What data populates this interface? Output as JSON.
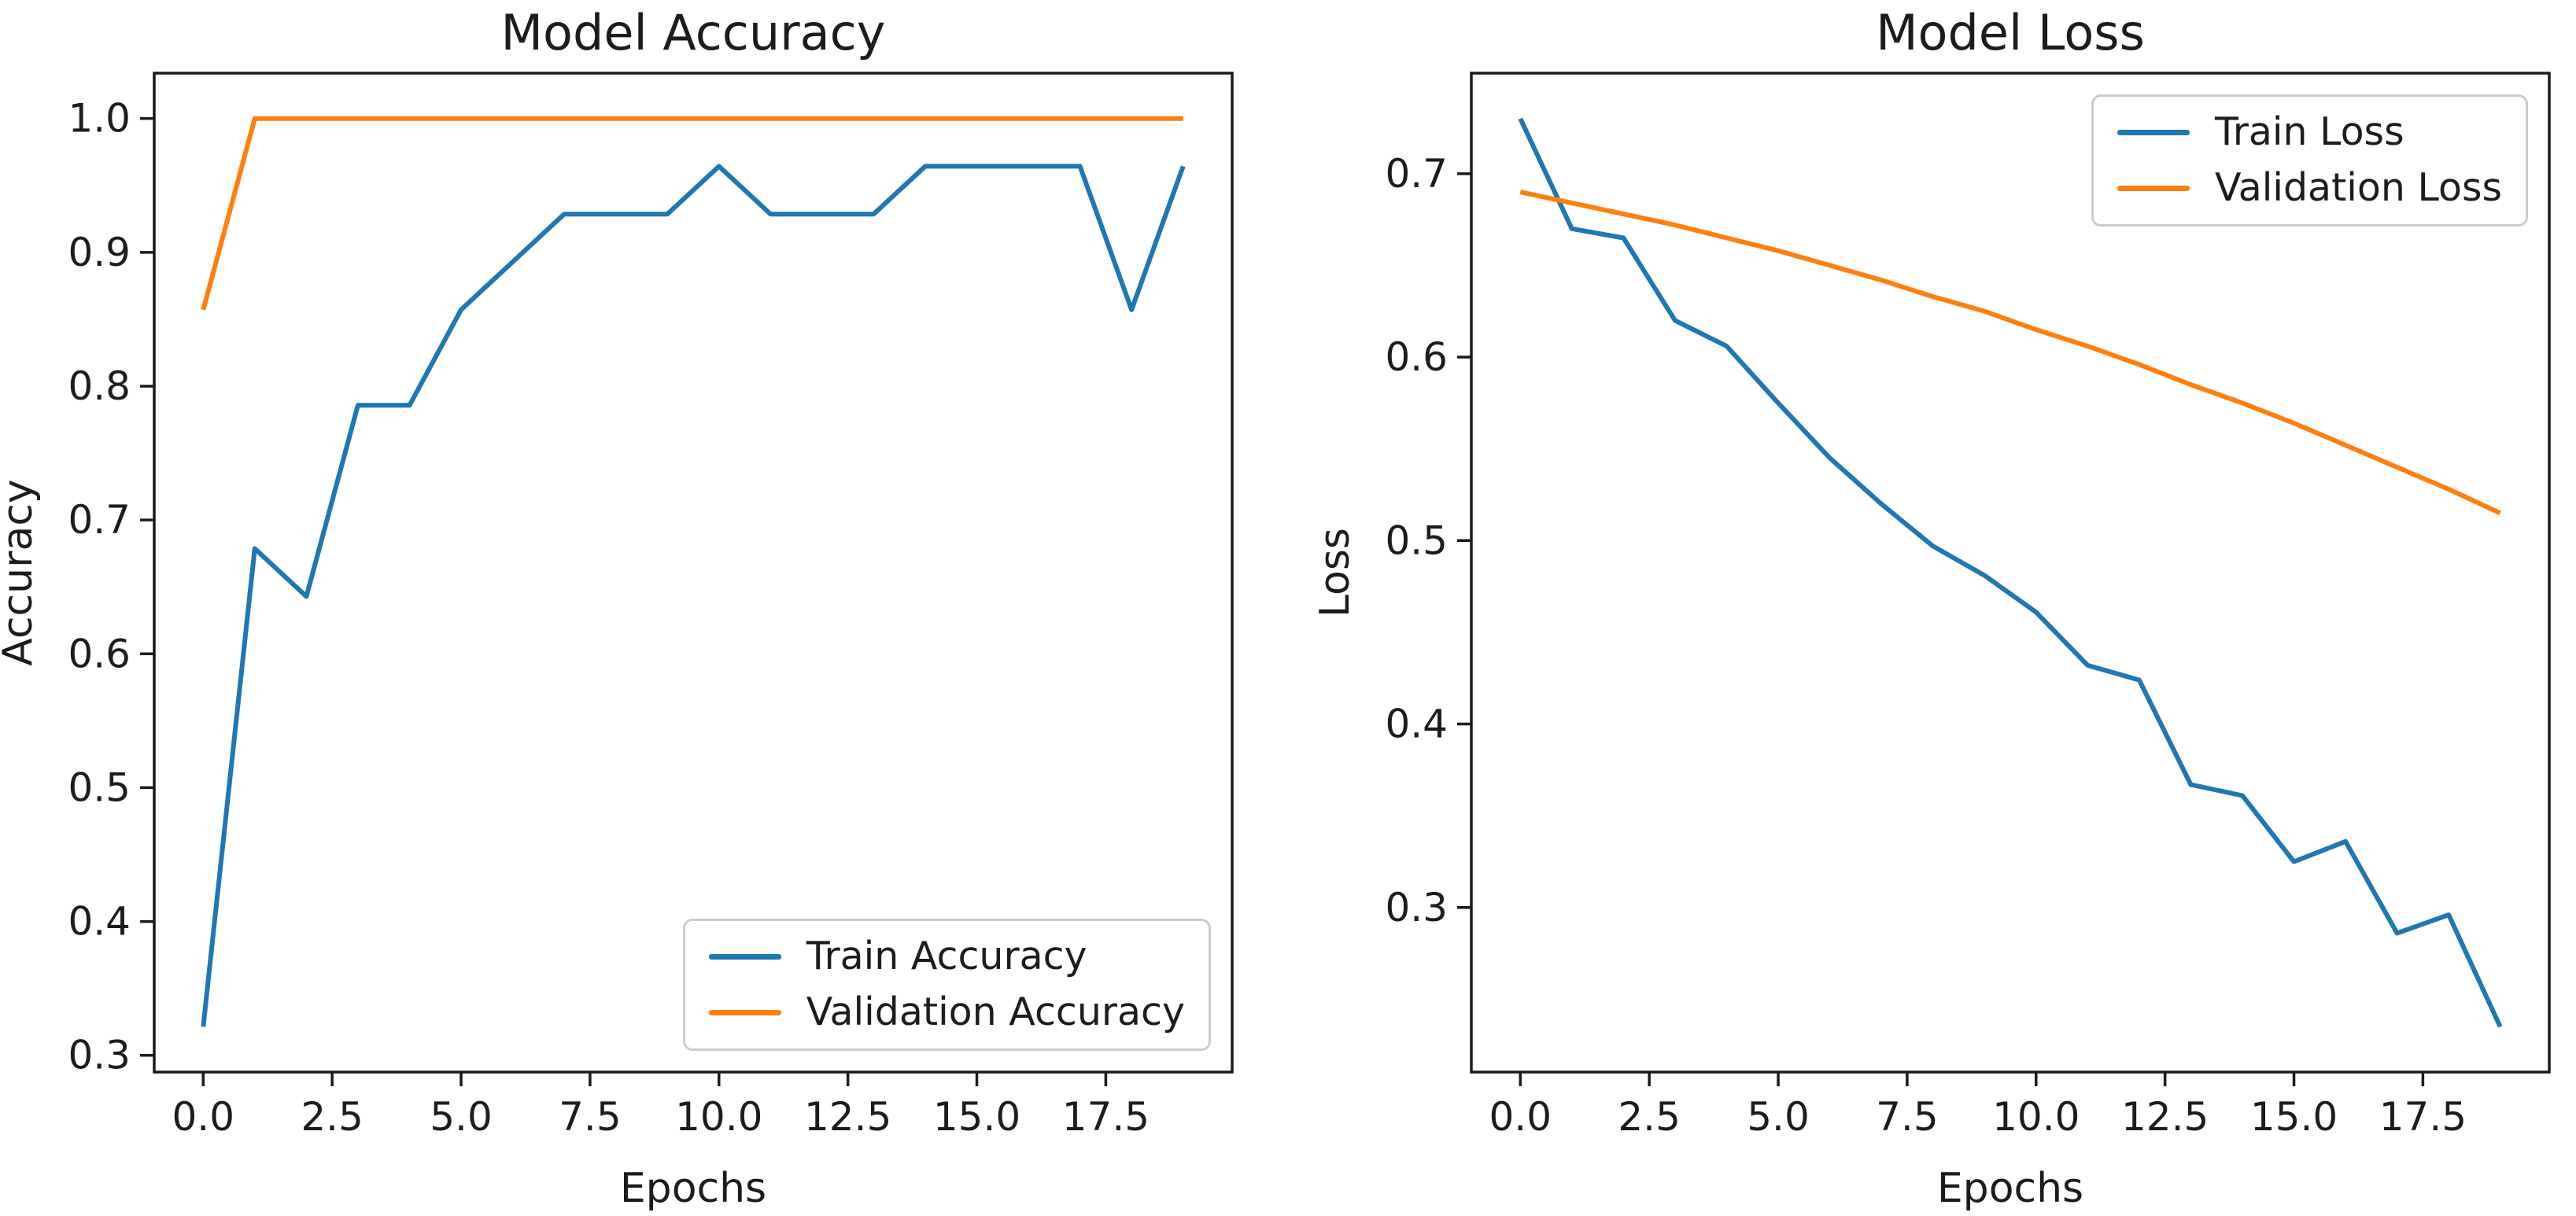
{
  "figure": {
    "background": "#ffffff",
    "text_color": "#1c1c1c",
    "spine_color": "#1a1a1a"
  },
  "chart_data": [
    {
      "type": "line",
      "id": "accuracy-chart",
      "title": "Model Accuracy",
      "xlabel": "Epochs",
      "ylabel": "Accuracy",
      "x": [
        0,
        1,
        2,
        3,
        4,
        5,
        6,
        7,
        8,
        9,
        10,
        11,
        12,
        13,
        14,
        15,
        16,
        17,
        18,
        19
      ],
      "series": [
        {
          "name": "Train Accuracy",
          "color": "#1f77b4",
          "values": [
            0.3214,
            0.6786,
            0.6429,
            0.7857,
            0.7857,
            0.8571,
            0.8929,
            0.9286,
            0.9286,
            0.9286,
            0.9643,
            0.9286,
            0.9286,
            0.9286,
            0.9643,
            0.9643,
            0.9643,
            0.9643,
            0.8571,
            0.9643
          ]
        },
        {
          "name": "Validation Accuracy",
          "color": "#ff7f0e",
          "values": [
            0.8571,
            1.0,
            1.0,
            1.0,
            1.0,
            1.0,
            1.0,
            1.0,
            1.0,
            1.0,
            1.0,
            1.0,
            1.0,
            1.0,
            1.0,
            1.0,
            1.0,
            1.0,
            1.0,
            1.0
          ]
        }
      ],
      "xlim": [
        -0.95,
        19.95
      ],
      "ylim": [
        0.2875,
        1.0339
      ],
      "xticks": {
        "values": [
          0,
          2.5,
          5,
          7.5,
          10,
          12.5,
          15,
          17.5
        ],
        "labels": [
          "0.0",
          "2.5",
          "5.0",
          "7.5",
          "10.0",
          "12.5",
          "15.0",
          "17.5"
        ]
      },
      "yticks": {
        "values": [
          0.3,
          0.4,
          0.5,
          0.6,
          0.7,
          0.8,
          0.9,
          1.0
        ],
        "labels": [
          "0.3",
          "0.4",
          "0.5",
          "0.6",
          "0.7",
          "0.8",
          "0.9",
          "1.0"
        ]
      },
      "grid": false,
      "legend": {
        "position": "lower-right"
      }
    },
    {
      "type": "line",
      "id": "loss-chart",
      "title": "Model Loss",
      "xlabel": "Epochs",
      "ylabel": "Loss",
      "x": [
        0,
        1,
        2,
        3,
        4,
        5,
        6,
        7,
        8,
        9,
        10,
        11,
        12,
        13,
        14,
        15,
        16,
        17,
        18,
        19
      ],
      "series": [
        {
          "name": "Train Loss",
          "color": "#1f77b4",
          "values": [
            0.73,
            0.67,
            0.665,
            0.62,
            0.606,
            0.575,
            0.545,
            0.52,
            0.497,
            0.481,
            0.461,
            0.432,
            0.424,
            0.367,
            0.361,
            0.325,
            0.336,
            0.286,
            0.296,
            0.235
          ]
        },
        {
          "name": "Validation Loss",
          "color": "#ff7f0e",
          "values": [
            0.69,
            0.684,
            0.678,
            0.672,
            0.665,
            0.658,
            0.65,
            0.642,
            0.633,
            0.625,
            0.615,
            0.606,
            0.596,
            0.585,
            0.575,
            0.564,
            0.552,
            0.54,
            0.528,
            0.515
          ]
        }
      ],
      "xlim": [
        -0.95,
        19.95
      ],
      "ylim": [
        0.2103,
        0.7548
      ],
      "xticks": {
        "values": [
          0,
          2.5,
          5,
          7.5,
          10,
          12.5,
          15,
          17.5
        ],
        "labels": [
          "0.0",
          "2.5",
          "5.0",
          "7.5",
          "10.0",
          "12.5",
          "15.0",
          "17.5"
        ]
      },
      "yticks": {
        "values": [
          0.3,
          0.4,
          0.5,
          0.6,
          0.7
        ],
        "labels": [
          "0.3",
          "0.4",
          "0.5",
          "0.6",
          "0.7"
        ]
      },
      "grid": false,
      "legend": {
        "position": "upper-right"
      }
    }
  ]
}
